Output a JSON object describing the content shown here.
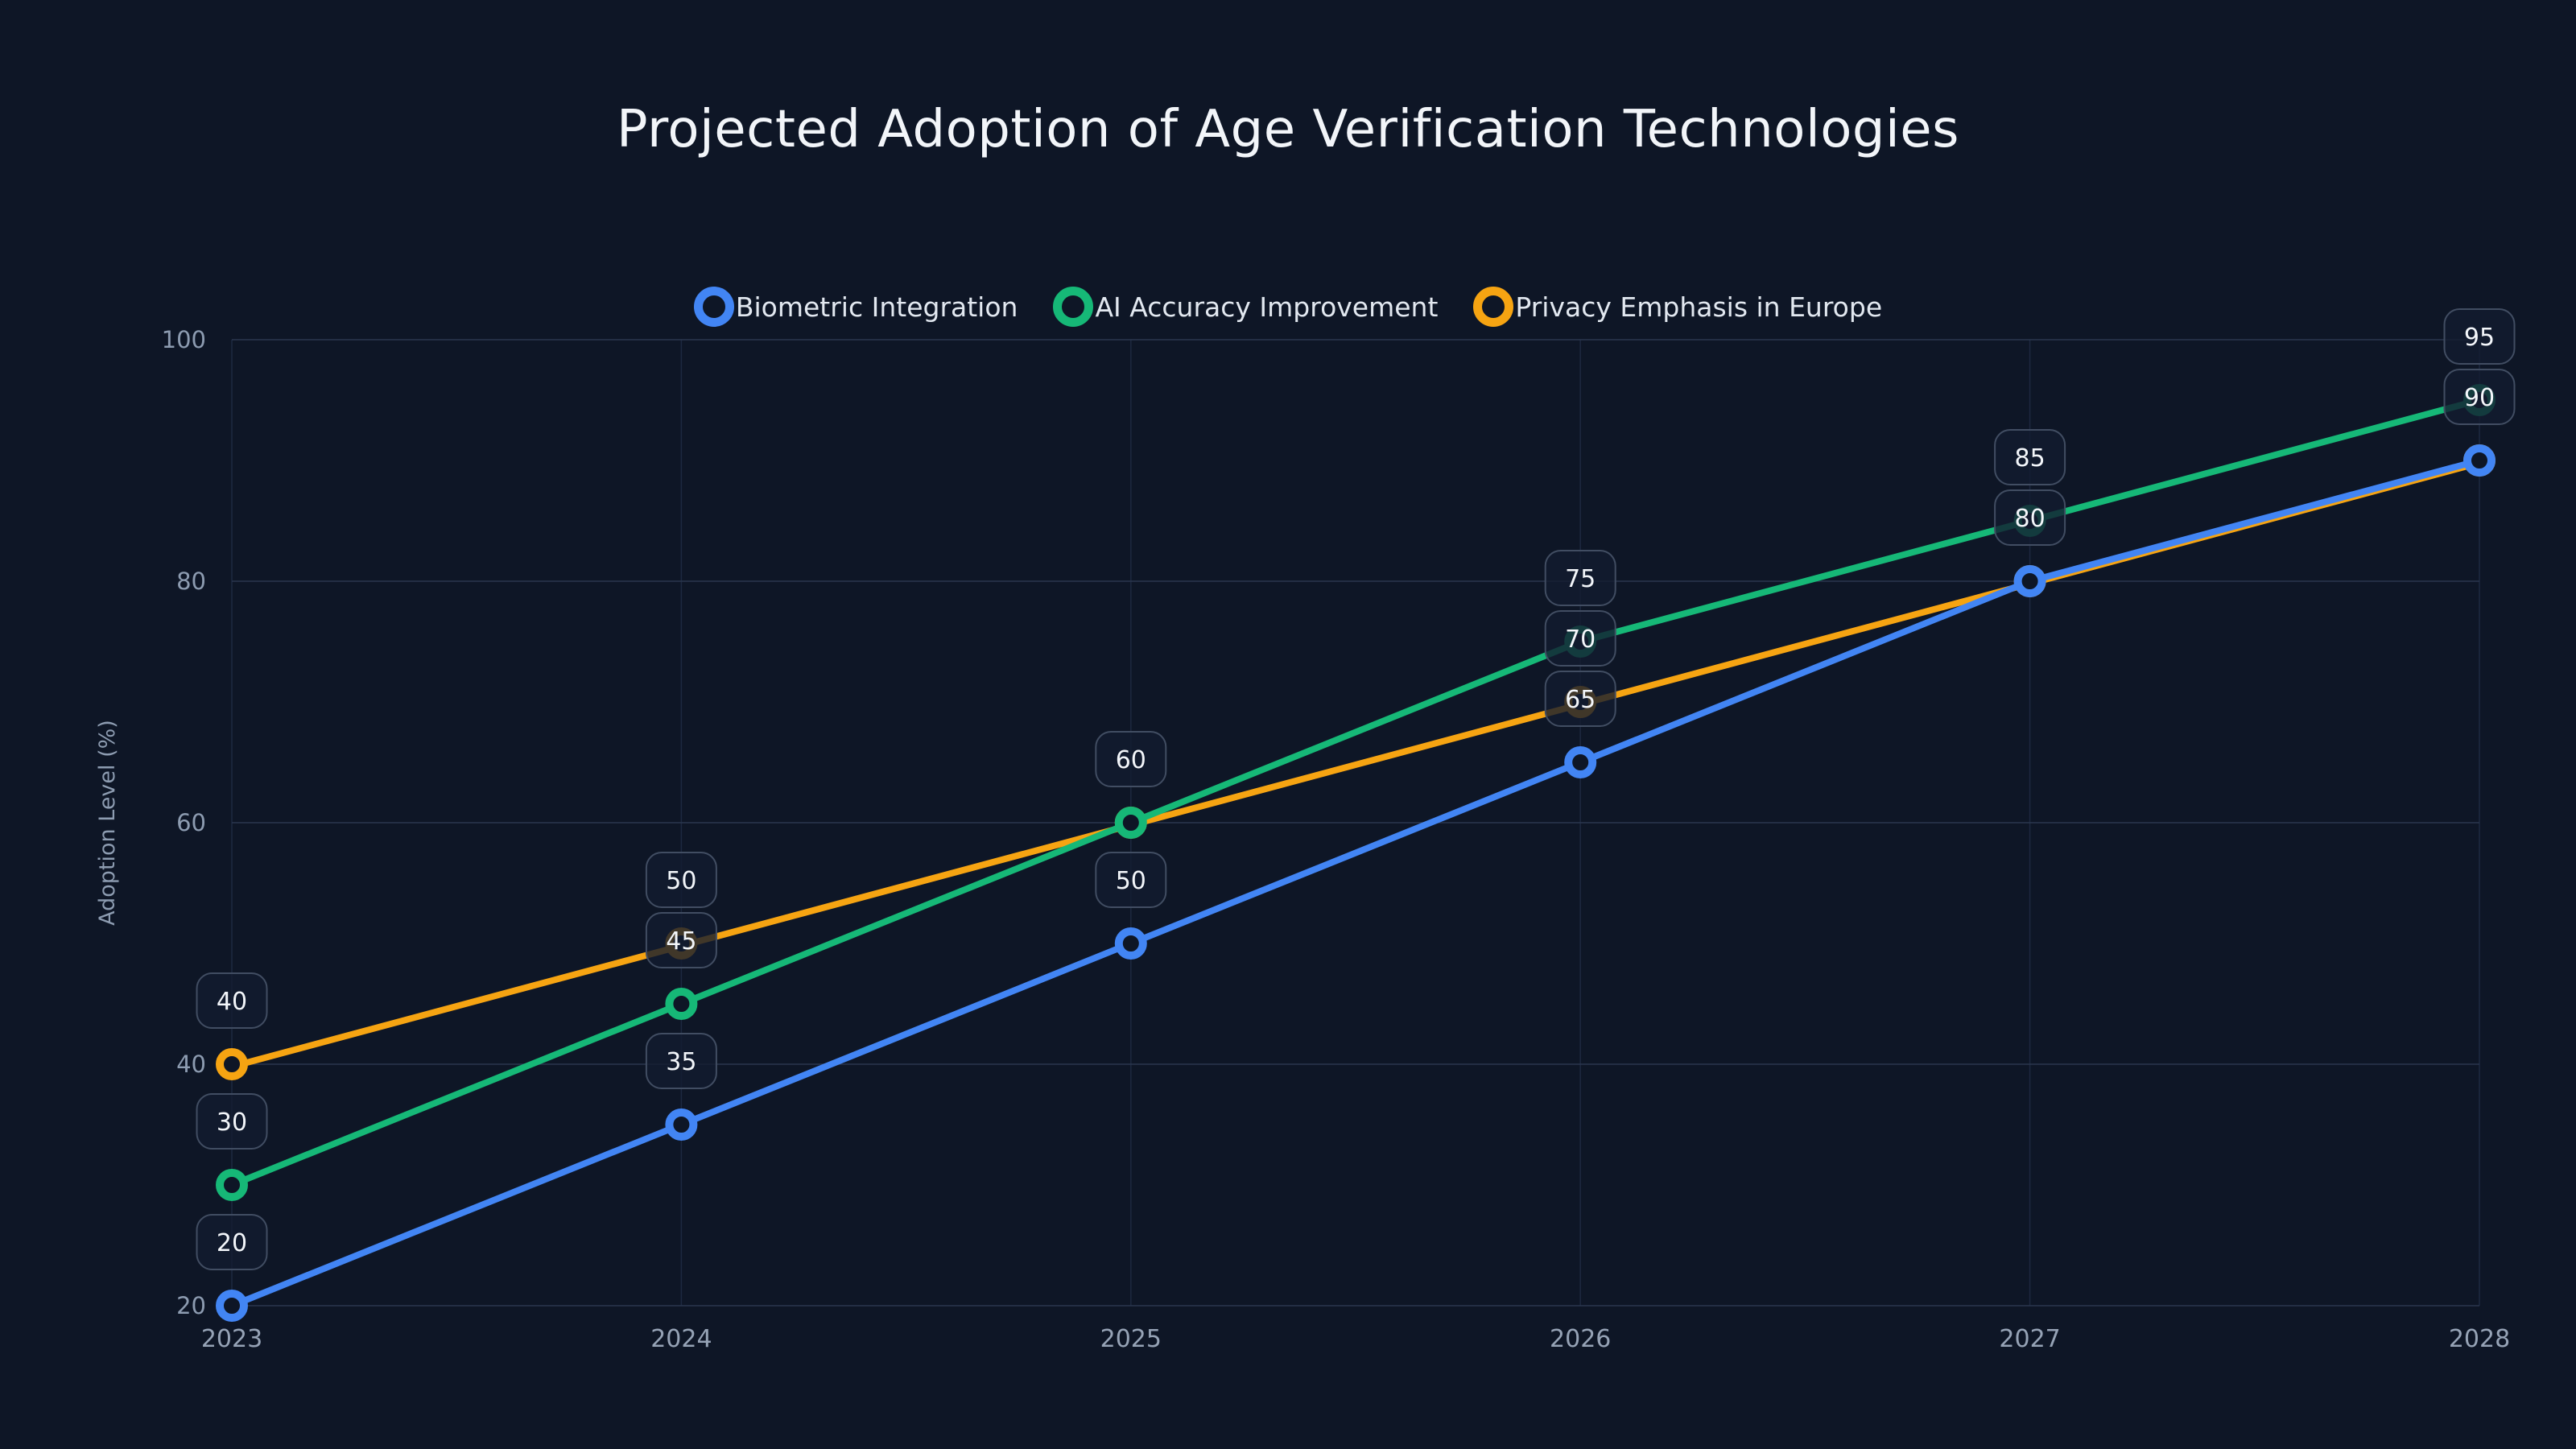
{
  "chart_data": {
    "type": "line",
    "title": "Projected Adoption of Age Verification Technologies",
    "xlabel": "",
    "ylabel": "Adoption Level (%)",
    "categories": [
      "2023",
      "2024",
      "2025",
      "2026",
      "2027",
      "2028"
    ],
    "ylim": [
      20,
      100
    ],
    "yticks": [
      20,
      40,
      60,
      80,
      100
    ],
    "grid": true,
    "legend_position": "top-center",
    "point_labels_visible": true,
    "point_label_values": {
      "2023": [
        40,
        30,
        20
      ],
      "2024": [
        50,
        45,
        35
      ],
      "2025": [
        60,
        50
      ],
      "2026": [
        75,
        70,
        65
      ],
      "2027": [
        85,
        80
      ],
      "2028": [
        95,
        90
      ]
    },
    "series": [
      {
        "name": "Biometric Integration",
        "color": "#4285f4",
        "values": [
          20,
          35,
          50,
          65,
          80,
          90
        ]
      },
      {
        "name": "AI Accuracy Improvement",
        "color": "#16b877",
        "values": [
          30,
          45,
          60,
          75,
          85,
          95
        ]
      },
      {
        "name": "Privacy Emphasis in Europe",
        "color": "#f6a412",
        "values": [
          40,
          50,
          60,
          70,
          80,
          90
        ]
      }
    ]
  },
  "colors": {
    "background": "#0e1626",
    "title_text": "#f2f5f9",
    "legend_text": "#e2e8f0",
    "tick_text": "#8d9cb1",
    "badge_border": "#414d62",
    "badge_text": "#f3f6fa"
  }
}
